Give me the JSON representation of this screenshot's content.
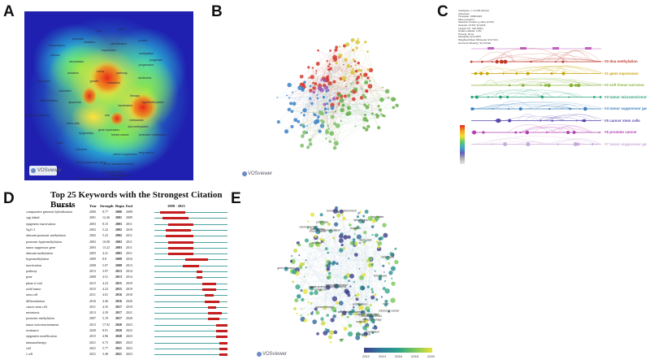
{
  "panels": {
    "a": {
      "letter": "A",
      "terms": [
        "dna",
        "gene",
        "promoter",
        "transcription",
        "imitation",
        "identification",
        "expression",
        "silence",
        "mechanism",
        "protein",
        "mutation",
        "progression",
        "methylation",
        "prognosis",
        "chromatin",
        "tumor",
        "growth",
        "pathway",
        "carcinoma",
        "activation",
        "mutations",
        "differentiation",
        "apoptosis",
        "therapy",
        "hypermethylation",
        "epigenetic regulation",
        "inactivation",
        "metastasis",
        "risk",
        "gene expression",
        "breast cancer",
        "dna methylation",
        "promoter methylation",
        "stem cells",
        "epigenetics",
        "microrna",
        "cancer suppressor",
        "tumor-suppressor gene",
        "acute myeloid leukemia",
        "colorectal cancer",
        "epithelial-mesenchymal transition",
        "lung cancer",
        "down-regulation",
        "mice"
      ],
      "logo": "VOSviewer"
    },
    "b": {
      "letter": "B",
      "logo": "VOSviewer"
    },
    "c": {
      "letter": "C",
      "legend_lines": [
        "CiteSpace, v. 6.2.R6 (64-bit)",
        "Advanced",
        "Timespan: 1998-2023",
        "Slice Length=1",
        "Selection Criteria: g-index (k=25)",
        "Network: N=437, E=2116",
        "Largest CC: 410 (93%)",
        "Nodes Labeled: 1.0%",
        "Pruning: None",
        "Modularity Q=0.3975",
        "Weighted Mean Silhouette S=0.7121",
        "Harmonic Mean(Q, S)=0.5102"
      ],
      "clusters": [
        {
          "label": "#0 dna methylation",
          "color": "#c0392b"
        },
        {
          "label": "#1 gene expression",
          "color": "#c9a400"
        },
        {
          "label": "#2 soft tissue sarcoma",
          "color": "#8ab53d"
        },
        {
          "label": "#3 tumor microenvironment",
          "color": "#2aa37a"
        },
        {
          "label": "#4 tumor suppressor gene",
          "color": "#3a7fbf"
        },
        {
          "label": "#5 cancer stem cells",
          "color": "#5a48b0"
        },
        {
          "label": "#6 prostate cancer",
          "color": "#b03fb0"
        },
        {
          "label": "#7 tumor-suppressor gene",
          "color": "#c8a8d8"
        }
      ]
    },
    "d": {
      "letter": "D",
      "title": "Top 25 Keywords with the Strongest Citation Bursts",
      "headers": {
        "keywords": "Keywords",
        "year": "Year",
        "strength": "Strength",
        "begin": "Begin",
        "end": "End",
        "range": "1998 - 2023"
      },
      "start_year": 1998,
      "end_year": 2023,
      "rows": [
        {
          "kw": "comparative genomic hybridization",
          "year": 2000,
          "strength": "8.77",
          "begin": 2000,
          "end": 2008
        },
        {
          "kw": "cpg island",
          "year": 2001,
          "strength": "12.46",
          "begin": 2001,
          "end": 2009
        },
        {
          "kw": "epigenetic inactivation",
          "year": 2003,
          "strength": "8.15",
          "begin": 2003,
          "end": 2011
        },
        {
          "kw": "5q21.3",
          "year": 2002,
          "strength": "5.22",
          "begin": 2002,
          "end": 2010
        },
        {
          "kw": "aberrant promoter methylation",
          "year": 2002,
          "strength": "5.22",
          "begin": 2002,
          "end": 2011
        },
        {
          "kw": "promoter hypermethylation",
          "year": 2003,
          "strength": "10.08",
          "begin": 2003,
          "end": 2011
        },
        {
          "kw": "tumor suppressor gene",
          "year": 2003,
          "strength": "13.22",
          "begin": 2003,
          "end": 2011
        },
        {
          "kw": "aberrant methylation",
          "year": 2003,
          "strength": "4.21",
          "begin": 2003,
          "end": 2011
        },
        {
          "kw": "hypermethylation",
          "year": 2009,
          "strength": "8.8",
          "begin": 2009,
          "end": 2016
        },
        {
          "kw": "inactivation",
          "year": 2008,
          "strength": "5.07",
          "begin": 2008,
          "end": 2013
        },
        {
          "kw": "pathway",
          "year": 2013,
          "strength": "3.97",
          "begin": 2013,
          "end": 2014
        },
        {
          "kw": "gene",
          "year": 2008,
          "strength": "4.51",
          "begin": 2013,
          "end": 2014
        },
        {
          "kw": "phase ii trial",
          "year": 2015,
          "strength": "4.23",
          "begin": 2015,
          "end": 2019
        },
        {
          "kw": "solid tumor",
          "year": 2015,
          "strength": "4.23",
          "begin": 2015,
          "end": 2019
        },
        {
          "kw": "stem cell",
          "year": 2011,
          "strength": "4.01",
          "begin": 2016,
          "end": 2018
        },
        {
          "kw": "differentiation",
          "year": 2016,
          "strength": "4.46",
          "begin": 2016,
          "end": 2020
        },
        {
          "kw": "cancer stem cell",
          "year": 2011,
          "strength": "4.35",
          "begin": 2017,
          "end": 2019
        },
        {
          "kw": "metastasis",
          "year": 2013,
          "strength": "4.39",
          "begin": 2017,
          "end": 2021
        },
        {
          "kw": "promoter methylation",
          "year": 2007,
          "strength": "5.19",
          "begin": 2017,
          "end": 2020
        },
        {
          "kw": "tumor microenvironment",
          "year": 2015,
          "strength": "17.92",
          "begin": 2020,
          "end": 2023
        },
        {
          "kw": "resistance",
          "year": 2020,
          "strength": "8.91",
          "begin": 2020,
          "end": 2023
        },
        {
          "kw": "epigenetic modification",
          "year": 2015,
          "strength": "4.96",
          "begin": 2020,
          "end": 2023
        },
        {
          "kw": "immunotherapy",
          "year": 2021,
          "strength": "6.73",
          "begin": 2021,
          "end": 2023
        },
        {
          "kw": "cell",
          "year": 2021,
          "strength": "5.77",
          "begin": 2021,
          "end": 2023
        },
        {
          "kw": "t cell",
          "year": 2021,
          "strength": "3.48",
          "begin": 2021,
          "end": 2023
        }
      ]
    },
    "e": {
      "letter": "E",
      "logo": "VOSviewer",
      "scale_ticks": [
        "2012",
        "2014",
        "2016",
        "2018",
        "2020"
      ],
      "terms": [
        "acute promyelocytic leukemia",
        "cancer therapy",
        "submyeloid leukemia",
        "gene silencing",
        "histone acetylation",
        "methyltransferase",
        "tumor suppressor",
        "dna methylation",
        "colorectal cancer",
        "metastasis",
        "breast cancer",
        "immunotherapy",
        "chemotherapy",
        "prognosis",
        "expression",
        "epigenetics",
        "gene",
        "mutation",
        "phase ii trial",
        "inhibitor",
        "tumor microenvironment",
        "apoptosis",
        "stem cells",
        "combination",
        "proliferation",
        "biomarker",
        "survival",
        "mice",
        "cell",
        "ferroptosis"
      ]
    }
  },
  "colors": {
    "accent_red": "#c0392b",
    "accent_teal": "#4aa3a0",
    "vos_blue": "#1a1aa8"
  }
}
